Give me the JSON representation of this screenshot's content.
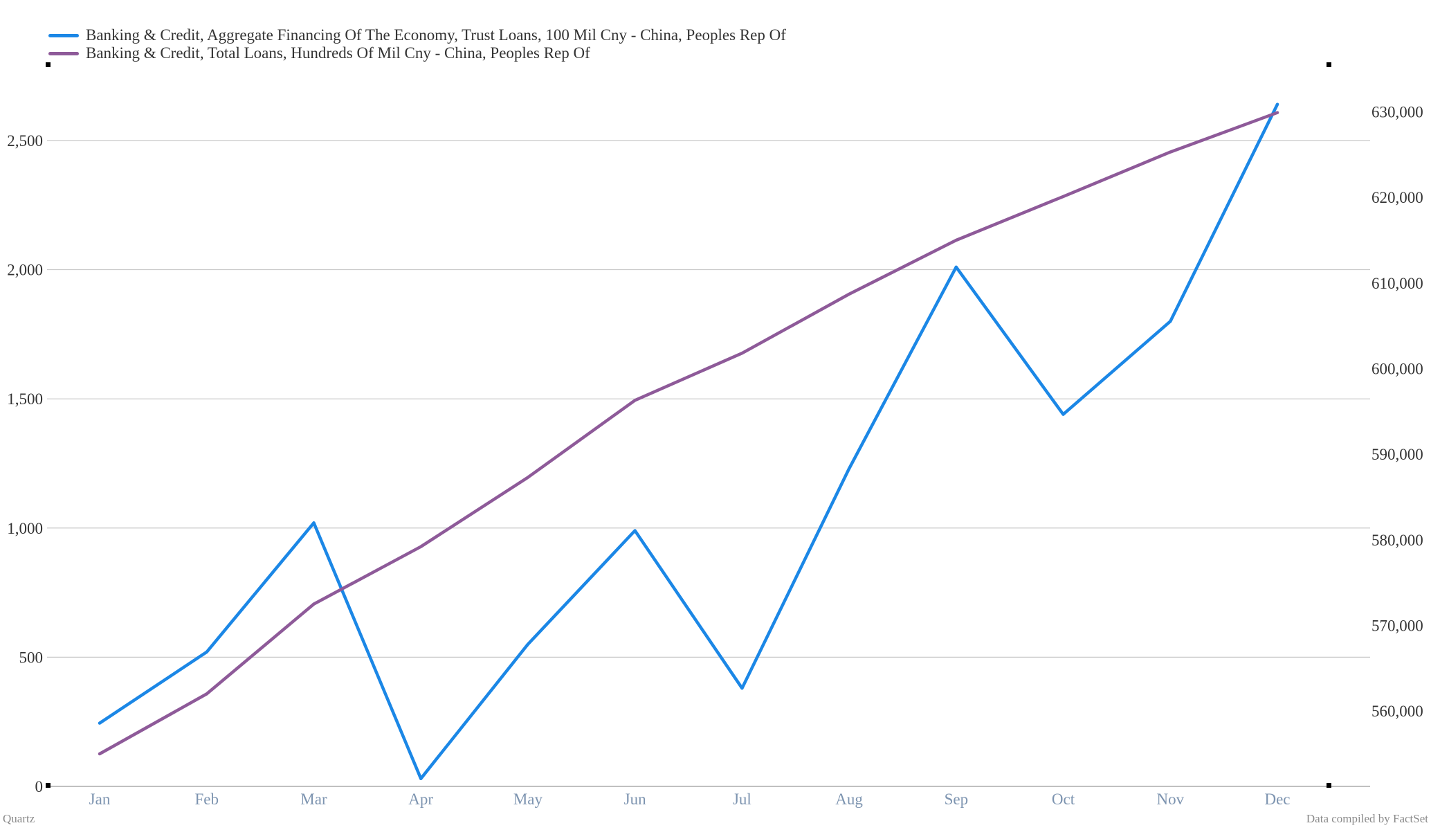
{
  "chart_data": {
    "type": "line",
    "categories": [
      "Jan",
      "Feb",
      "Mar",
      "Apr",
      "May",
      "Jun",
      "Jul",
      "Aug",
      "Sep",
      "Oct",
      "Nov",
      "Dec"
    ],
    "series": [
      {
        "name": "Banking & Credit, Aggregate Financing Of The Economy, Trust Loans, 100 Mil Cny - China, Peoples Rep Of",
        "color": "#1b87e6",
        "axis": "left",
        "values": [
          245,
          520,
          1020,
          30,
          550,
          990,
          380,
          1230,
          2010,
          1440,
          1800,
          2640
        ]
      },
      {
        "name": "Banking & Credit, Total Loans, Hundreds Of Mil Cny - China, Peoples Rep Of",
        "color": "#8e5a99",
        "axis": "right",
        "values": [
          555000,
          562000,
          572500,
          579200,
          587300,
          596300,
          601800,
          608700,
          615000,
          620100,
          625300,
          629900
        ]
      }
    ],
    "y_left": {
      "ticks": [
        0,
        500,
        1000,
        1500,
        2000,
        2500
      ],
      "tick_labels": [
        "0",
        "500",
        "1,000",
        "1,500",
        "2,000",
        "2,500"
      ],
      "ylim": [
        0,
        2800
      ]
    },
    "y_right": {
      "ticks": [
        560000,
        570000,
        580000,
        590000,
        600000,
        610000,
        620000,
        630000
      ],
      "tick_labels": [
        "560,000",
        "570,000",
        "580,000",
        "590,000",
        "600,000",
        "610,000",
        "620,000",
        "630,000"
      ],
      "ylim": [
        551200,
        635700
      ]
    },
    "grid": true,
    "legend_position": "top-left"
  },
  "footer": {
    "source_left": "Quartz",
    "source_right": "Data compiled by FactSet"
  }
}
